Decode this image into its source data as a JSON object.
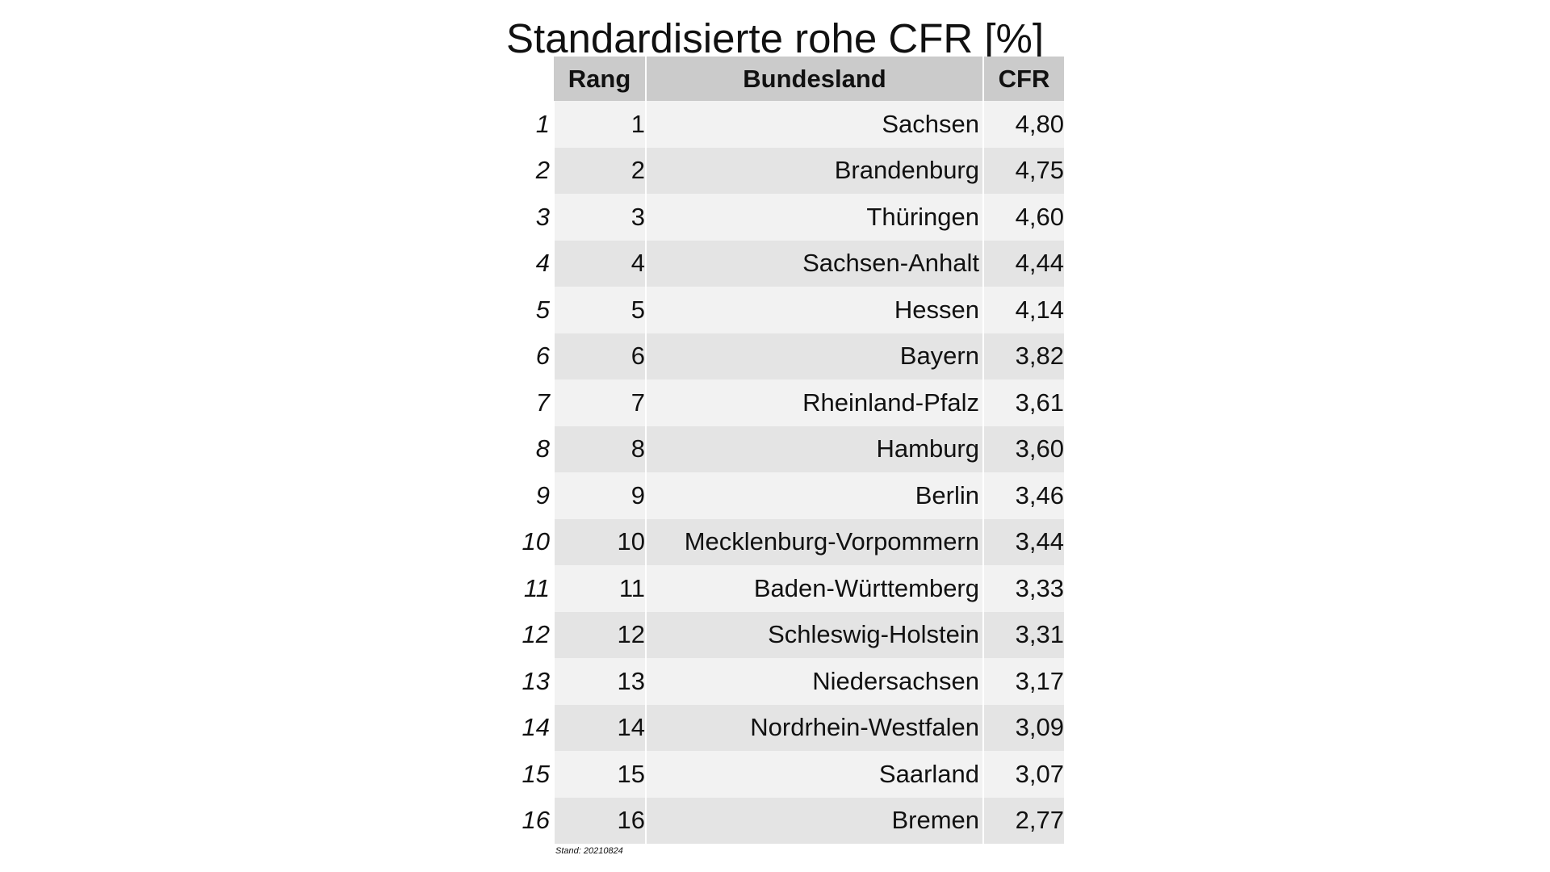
{
  "chart_data": {
    "type": "table",
    "title": "Standardisierte rohe CFR [%]",
    "columns": [
      "Rang",
      "Bundesland",
      "CFR"
    ],
    "rows": [
      {
        "index": "1",
        "rang": "1",
        "bundesland": "Sachsen",
        "cfr": "4,80"
      },
      {
        "index": "2",
        "rang": "2",
        "bundesland": "Brandenburg",
        "cfr": "4,75"
      },
      {
        "index": "3",
        "rang": "3",
        "bundesland": "Thüringen",
        "cfr": "4,60"
      },
      {
        "index": "4",
        "rang": "4",
        "bundesland": "Sachsen-Anhalt",
        "cfr": "4,44"
      },
      {
        "index": "5",
        "rang": "5",
        "bundesland": "Hessen",
        "cfr": "4,14"
      },
      {
        "index": "6",
        "rang": "6",
        "bundesland": "Bayern",
        "cfr": "3,82"
      },
      {
        "index": "7",
        "rang": "7",
        "bundesland": "Rheinland-Pfalz",
        "cfr": "3,61"
      },
      {
        "index": "8",
        "rang": "8",
        "bundesland": "Hamburg",
        "cfr": "3,60"
      },
      {
        "index": "9",
        "rang": "9",
        "bundesland": "Berlin",
        "cfr": "3,46"
      },
      {
        "index": "10",
        "rang": "10",
        "bundesland": "Mecklenburg-Vorpommern",
        "cfr": "3,44"
      },
      {
        "index": "11",
        "rang": "11",
        "bundesland": "Baden-Württemberg",
        "cfr": "3,33"
      },
      {
        "index": "12",
        "rang": "12",
        "bundesland": "Schleswig-Holstein",
        "cfr": "3,31"
      },
      {
        "index": "13",
        "rang": "13",
        "bundesland": "Niedersachsen",
        "cfr": "3,17"
      },
      {
        "index": "14",
        "rang": "14",
        "bundesland": "Nordrhein-Westfalen",
        "cfr": "3,09"
      },
      {
        "index": "15",
        "rang": "15",
        "bundesland": "Saarland",
        "cfr": "3,07"
      },
      {
        "index": "16",
        "rang": "16",
        "bundesland": "Bremen",
        "cfr": "2,77"
      }
    ],
    "footnote": "Stand: 20210824"
  }
}
